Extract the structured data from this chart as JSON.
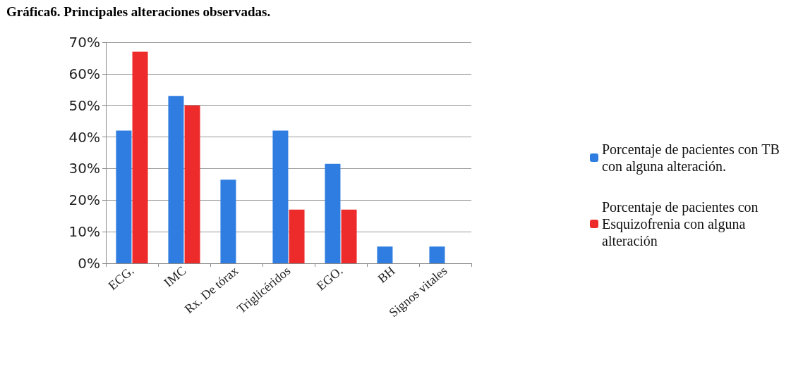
{
  "chart_data": {
    "type": "bar",
    "title": "Gráfica6. Principales alteraciones observadas.",
    "categories": [
      "ECG.",
      "IMC",
      "Rx. De tórax",
      "Triglicéridos",
      "EGO.",
      "BH",
      "Signos vitales"
    ],
    "series": [
      {
        "name": "Porcentaje de pacientes con TB con alguna alteración.",
        "color": "#2f7de1",
        "values": [
          42,
          53,
          26.5,
          42,
          31.5,
          5.3,
          5.3
        ]
      },
      {
        "name": "Porcentaje de pacientes con Esquizofrenia con alguna alteración",
        "color": "#ee2b2b",
        "values": [
          67,
          50,
          0,
          17,
          17,
          0,
          0
        ]
      }
    ],
    "ylim": [
      0,
      70
    ],
    "yticks": [
      {
        "value": 0,
        "label": "0%"
      },
      {
        "value": 10,
        "label": "10%"
      },
      {
        "value": 20,
        "label": "20%"
      },
      {
        "value": 30,
        "label": "30%"
      },
      {
        "value": 40,
        "label": "40%"
      },
      {
        "value": 50,
        "label": "50%"
      },
      {
        "value": 60,
        "label": "60%"
      },
      {
        "value": 70,
        "label": "70%"
      }
    ],
    "grid": "y",
    "legend": "right"
  }
}
